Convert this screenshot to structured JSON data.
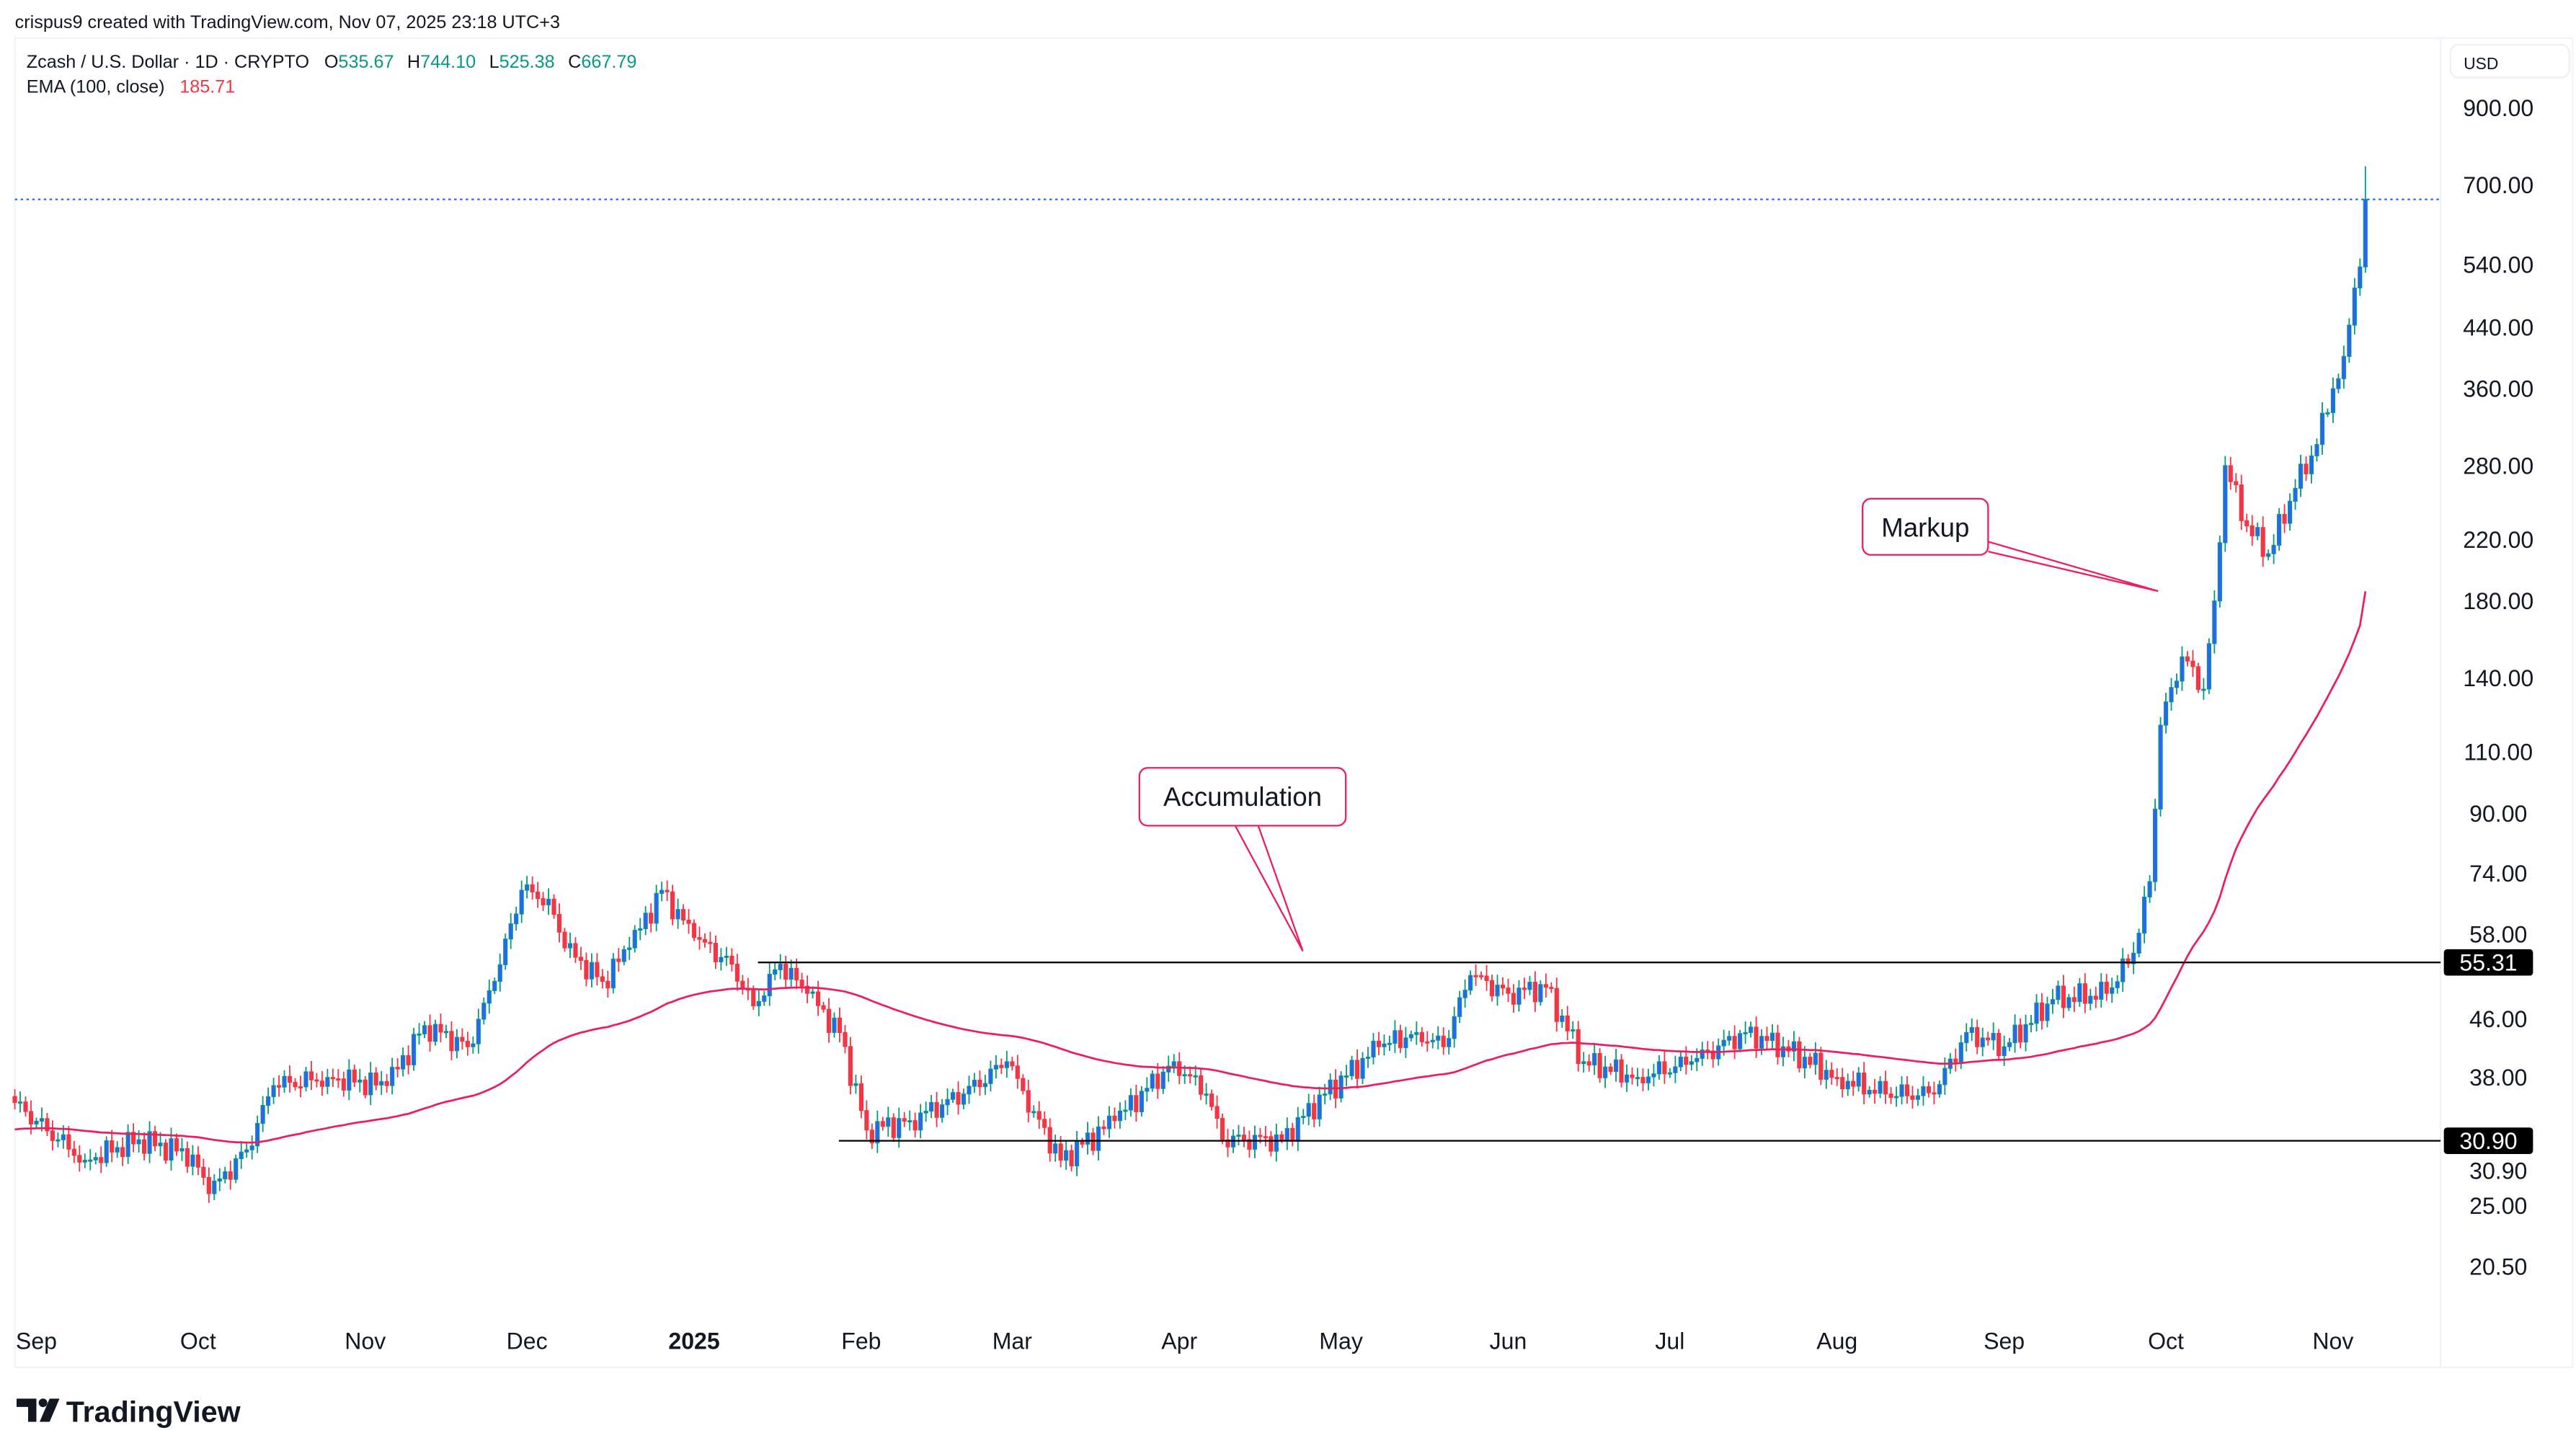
{
  "header": {
    "credit": "crispus9 created with TradingView.com, Nov 07, 2025 23:18 UTC+3"
  },
  "legend": {
    "symbol": "Zcash / U.S. Dollar · 1D · CRYPTO",
    "o_label": "O",
    "o_value": "535.67",
    "h_label": "H",
    "h_value": "744.10",
    "l_label": "L",
    "l_value": "525.38",
    "c_label": "C",
    "c_value": "667.79",
    "ema_label": "EMA (100, close)",
    "ema_value": "185.71"
  },
  "currency_button": "USD",
  "annotations": {
    "accumulation": "Accumulation",
    "markup": "Markup"
  },
  "levels": {
    "resistance": "55.31",
    "support": "30.90"
  },
  "logo": "TradingView",
  "colors": {
    "up_border": "#089981",
    "up_fill": "#2962ff",
    "down": "#f23645",
    "ema": "#e91e63",
    "last_price_line": "#2962ff",
    "legend_value": "#089981",
    "ema_value": "#f23645"
  },
  "chart_data": {
    "type": "candlestick",
    "title": "Zcash / U.S. Dollar · 1D · CRYPTO",
    "y_scale": "log",
    "ylim": [
      18,
      1000
    ],
    "y_ticks": [
      "900.00",
      "700.00",
      "540.00",
      "440.00",
      "360.00",
      "280.00",
      "220.00",
      "180.00",
      "140.00",
      "110.00",
      "90.00",
      "74.00",
      "58.00",
      "46.00",
      "38.00",
      "30.90",
      "25.00",
      "20.50"
    ],
    "x_ticks": [
      {
        "label": "Sep",
        "date": "2024-09-01",
        "bold": false
      },
      {
        "label": "Oct",
        "date": "2024-10-01",
        "bold": false
      },
      {
        "label": "Nov",
        "date": "2024-11-01",
        "bold": false
      },
      {
        "label": "Dec",
        "date": "2024-12-01",
        "bold": false
      },
      {
        "label": "2025",
        "date": "2025-01-01",
        "bold": true
      },
      {
        "label": "Feb",
        "date": "2025-02-01",
        "bold": false
      },
      {
        "label": "Mar",
        "date": "2025-03-01",
        "bold": false
      },
      {
        "label": "Apr",
        "date": "2025-04-01",
        "bold": false
      },
      {
        "label": "May",
        "date": "2025-05-01",
        "bold": false
      },
      {
        "label": "Jun",
        "date": "2025-06-01",
        "bold": false
      },
      {
        "label": "Jul",
        "date": "2025-07-01",
        "bold": false
      },
      {
        "label": "Aug",
        "date": "2025-08-01",
        "bold": false
      },
      {
        "label": "Sep",
        "date": "2025-09-01",
        "bold": false
      },
      {
        "label": "Oct",
        "date": "2025-10-01",
        "bold": false
      },
      {
        "label": "Nov",
        "date": "2025-11-01",
        "bold": false
      }
    ],
    "grid": false,
    "last_candle": {
      "date": "2025-11-07",
      "open": 535.67,
      "high": 744.1,
      "low": 525.38,
      "close": 667.79
    },
    "ema_period": 100,
    "ema_last": 185.71,
    "horizontal_levels": [
      55.31,
      30.9
    ],
    "approx_closes": [
      [
        "2024-08-28",
        35
      ],
      [
        "2024-09-05",
        31
      ],
      [
        "2024-09-10",
        29
      ],
      [
        "2024-09-20",
        31
      ],
      [
        "2024-09-30",
        29.5
      ],
      [
        "2024-10-03",
        26
      ],
      [
        "2024-10-10",
        30
      ],
      [
        "2024-10-15",
        37
      ],
      [
        "2024-10-25",
        38
      ],
      [
        "2024-11-05",
        37
      ],
      [
        "2024-11-12",
        45
      ],
      [
        "2024-11-20",
        42
      ],
      [
        "2024-11-25",
        52
      ],
      [
        "2024-11-30",
        70
      ],
      [
        "2024-12-05",
        68
      ],
      [
        "2024-12-08",
        58
      ],
      [
        "2024-12-15",
        52
      ],
      [
        "2024-12-20",
        58
      ],
      [
        "2024-12-26",
        70
      ],
      [
        "2025-01-01",
        60
      ],
      [
        "2025-01-08",
        55
      ],
      [
        "2025-01-12",
        48
      ],
      [
        "2025-01-17",
        55
      ],
      [
        "2025-01-22",
        50
      ],
      [
        "2025-01-28",
        44
      ],
      [
        "2025-02-02",
        32
      ],
      [
        "2025-02-10",
        33
      ],
      [
        "2025-02-20",
        36
      ],
      [
        "2025-02-28",
        40
      ],
      [
        "2025-03-05",
        34
      ],
      [
        "2025-03-10",
        29
      ],
      [
        "2025-03-20",
        33
      ],
      [
        "2025-03-31",
        40
      ],
      [
        "2025-04-06",
        36
      ],
      [
        "2025-04-09",
        31
      ],
      [
        "2025-04-20",
        31
      ],
      [
        "2025-04-28",
        36
      ],
      [
        "2025-05-08",
        42
      ],
      [
        "2025-05-15",
        44
      ],
      [
        "2025-05-20",
        42
      ],
      [
        "2025-05-25",
        53
      ],
      [
        "2025-06-01",
        50
      ],
      [
        "2025-06-08",
        51
      ],
      [
        "2025-06-15",
        40
      ],
      [
        "2025-06-25",
        38
      ],
      [
        "2025-07-05",
        40
      ],
      [
        "2025-07-15",
        44
      ],
      [
        "2025-07-22",
        42
      ],
      [
        "2025-08-01",
        38
      ],
      [
        "2025-08-10",
        36
      ],
      [
        "2025-08-19",
        36
      ],
      [
        "2025-08-25",
        44
      ],
      [
        "2025-09-01",
        42
      ],
      [
        "2025-09-10",
        49
      ],
      [
        "2025-09-20",
        50
      ],
      [
        "2025-09-25",
        57
      ],
      [
        "2025-09-28",
        72
      ],
      [
        "2025-09-30",
        120
      ],
      [
        "2025-10-04",
        150
      ],
      [
        "2025-10-08",
        135
      ],
      [
        "2025-10-10",
        180
      ],
      [
        "2025-10-12",
        280
      ],
      [
        "2025-10-16",
        230
      ],
      [
        "2025-10-20",
        210
      ],
      [
        "2025-10-25",
        260
      ],
      [
        "2025-10-29",
        300
      ],
      [
        "2025-11-01",
        360
      ],
      [
        "2025-11-03",
        400
      ],
      [
        "2025-11-05",
        500
      ],
      [
        "2025-11-06",
        535.67
      ],
      [
        "2025-11-07",
        667.79
      ]
    ]
  }
}
